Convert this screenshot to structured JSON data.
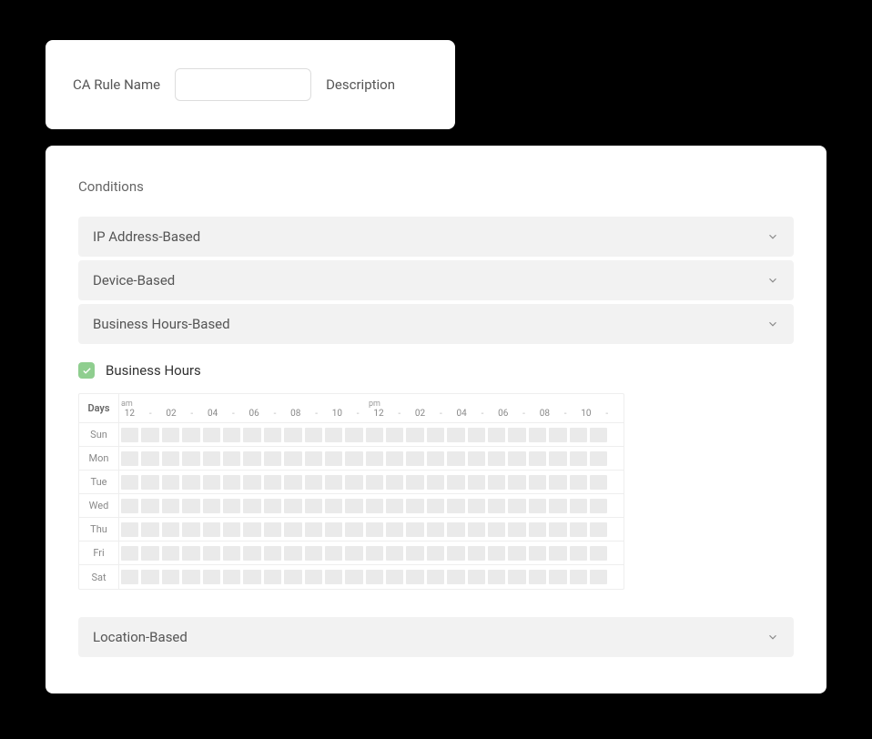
{
  "topCard": {
    "ruleNameLabel": "CA Rule Name",
    "ruleNameValue": "",
    "descriptionLabel": "Description"
  },
  "main": {
    "sectionTitle": "Conditions",
    "accordions": [
      {
        "label": "IP Address-Based"
      },
      {
        "label": "Device-Based"
      },
      {
        "label": "Business Hours-Based"
      }
    ],
    "businessHours": {
      "checkboxChecked": true,
      "checkboxLabel": "Business Hours",
      "checkboxColor": "#8fce8f"
    },
    "schedule": {
      "daysHeader": "Days",
      "amLabel": "am",
      "pmLabel": "pm",
      "hourLabels": [
        "12",
        "-",
        "02",
        "-",
        "04",
        "-",
        "06",
        "-",
        "08",
        "-",
        "10",
        "-",
        "12",
        "-",
        "02",
        "-",
        "04",
        "-",
        "06",
        "-",
        "08",
        "-",
        "10",
        "-"
      ],
      "days": [
        "Sun",
        "Mon",
        "Tue",
        "Wed",
        "Thu",
        "Fri",
        "Sat"
      ],
      "slotsPerDay": 24,
      "slotColor": "#eaeaea",
      "borderColor": "#eeeeee"
    },
    "lastAccordion": {
      "label": "Location-Based"
    }
  },
  "colors": {
    "pageBg": "#000000",
    "cardBg": "#ffffff",
    "accordionBg": "#f2f2f2",
    "textMuted": "#666666",
    "textLabel": "#555555",
    "inputBorder": "#dddddd"
  }
}
